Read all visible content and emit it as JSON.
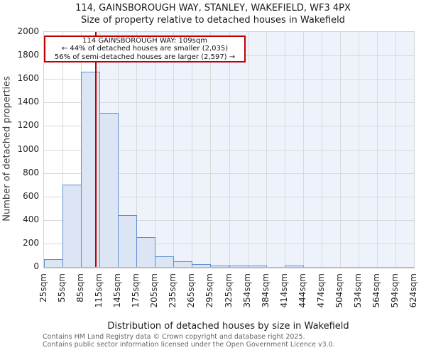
{
  "title": "114, GAINSBOROUGH WAY, STANLEY, WAKEFIELD, WF3 4PX",
  "subtitle": "Size of property relative to detached houses in Wakefield",
  "annotation": {
    "line1": "114 GAINSBOROUGH WAY: 109sqm",
    "line2": "← 44% of detached houses are smaller (2,035)",
    "line3": "56% of semi-detached houses are larger (2,597) →"
  },
  "chart_data": {
    "type": "bar",
    "title": "114, GAINSBOROUGH WAY, STANLEY, WAKEFIELD, WF3 4PX",
    "subtitle": "Size of property relative to detached houses in Wakefield",
    "xlabel": "Distribution of detached houses by size in Wakefield",
    "ylabel": "Number of detached properties",
    "ylim": [
      0,
      2000
    ],
    "ytick_interval": 200,
    "ytick_labels": [
      "0",
      "200",
      "400",
      "600",
      "800",
      "1000",
      "1200",
      "1400",
      "1600",
      "1800",
      "2000"
    ],
    "x_tick_labels": [
      "25sqm",
      "55sqm",
      "85sqm",
      "115sqm",
      "145sqm",
      "175sqm",
      "205sqm",
      "235sqm",
      "265sqm",
      "295sqm",
      "325sqm",
      "354sqm",
      "384sqm",
      "414sqm",
      "444sqm",
      "474sqm",
      "504sqm",
      "534sqm",
      "564sqm",
      "594sqm",
      "624sqm"
    ],
    "bin_edges_sqm": [
      25,
      55,
      85,
      115,
      145,
      175,
      205,
      235,
      265,
      295,
      325,
      354,
      384,
      414,
      444,
      474,
      504,
      534,
      564,
      594,
      624
    ],
    "values": [
      65,
      700,
      1660,
      1310,
      440,
      255,
      90,
      50,
      25,
      15,
      10,
      8,
      0,
      8,
      0,
      0,
      0,
      0,
      0,
      0
    ],
    "marker": {
      "label": "114 GAINSBOROUGH WAY",
      "value_sqm": 109
    },
    "grid": true,
    "colors": {
      "bar_fill": "#dbe5f4",
      "bar_border": "#5f8fce",
      "marker_line": "#bf0000",
      "annotation_border": "#c00000",
      "shade_right_of_marker": "#eef3fb",
      "gridline": "#d9d9d9"
    }
  },
  "footer": {
    "line1": "Contains HM Land Registry data © Crown copyright and database right 2025.",
    "line2": "Contains public sector information licensed under the Open Government Licence v3.0."
  }
}
